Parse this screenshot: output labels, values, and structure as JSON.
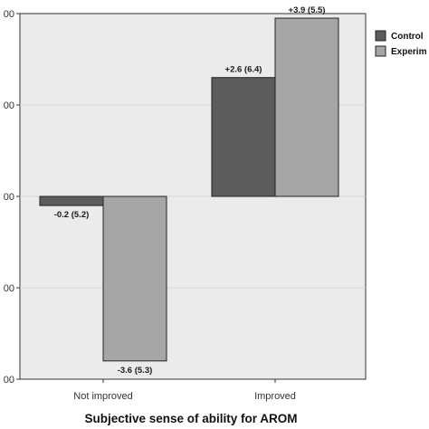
{
  "chart_data": {
    "type": "bar",
    "categories": [
      "Not improved",
      "Improved"
    ],
    "series": [
      {
        "name": "Control",
        "values": [
          -0.2,
          2.6
        ],
        "labels": [
          "-0.2 (5.2)",
          "+2.6 (6.4)"
        ],
        "color": "#5c5c5c"
      },
      {
        "name": "Experim",
        "values": [
          -3.6,
          3.9
        ],
        "labels": [
          "-3.6 (5.3)",
          "+3.9 (5.5)"
        ],
        "color": "#a6a6a6"
      }
    ],
    "y_tick_labels": [
      "00",
      "00",
      "00",
      "00",
      "00"
    ],
    "xlabel": "Subjective sense of ability for AROM",
    "ylim": [
      -4.0,
      4.0
    ],
    "plot_background": "#ebebeb",
    "grid": true,
    "legend_position": "right"
  }
}
